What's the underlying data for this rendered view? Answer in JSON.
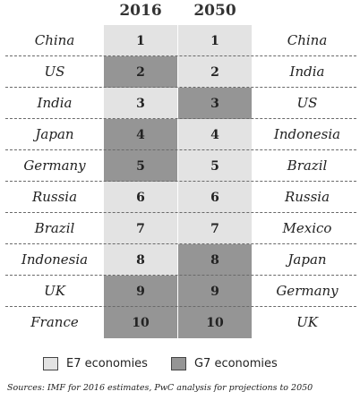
{
  "header": {
    "year_2016": "2016",
    "year_2050": "2050"
  },
  "rows": [
    {
      "left": "China",
      "r2016": "1",
      "g2016": "E7",
      "r2050": "1",
      "g2050": "E7",
      "right": "China"
    },
    {
      "left": "US",
      "r2016": "2",
      "g2016": "G7",
      "r2050": "2",
      "g2050": "E7",
      "right": "India"
    },
    {
      "left": "India",
      "r2016": "3",
      "g2016": "E7",
      "r2050": "3",
      "g2050": "G7",
      "right": "US"
    },
    {
      "left": "Japan",
      "r2016": "4",
      "g2016": "G7",
      "r2050": "4",
      "g2050": "E7",
      "right": "Indonesia"
    },
    {
      "left": "Germany",
      "r2016": "5",
      "g2016": "G7",
      "r2050": "5",
      "g2050": "E7",
      "right": "Brazil"
    },
    {
      "left": "Russia",
      "r2016": "6",
      "g2016": "E7",
      "r2050": "6",
      "g2050": "E7",
      "right": "Russia"
    },
    {
      "left": "Brazil",
      "r2016": "7",
      "g2016": "E7",
      "r2050": "7",
      "g2050": "E7",
      "right": "Mexico"
    },
    {
      "left": "Indonesia",
      "r2016": "8",
      "g2016": "E7",
      "r2050": "8",
      "g2050": "G7",
      "right": "Japan"
    },
    {
      "left": "UK",
      "r2016": "9",
      "g2016": "G7",
      "r2050": "9",
      "g2050": "G7",
      "right": "Germany"
    },
    {
      "left": "France",
      "r2016": "10",
      "g2016": "G7",
      "r2050": "10",
      "g2050": "G7",
      "right": "UK"
    }
  ],
  "legend": {
    "e7": "E7 economies",
    "g7": "G7 economies"
  },
  "colors": {
    "e7": "#e3e3e3",
    "g7": "#959595"
  },
  "source": "Sources: IMF for 2016 estimates, PwC analysis for projections to 2050"
}
